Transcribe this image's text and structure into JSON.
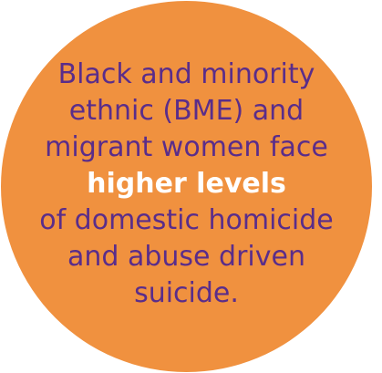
{
  "callout": {
    "lines": [
      "Black and minority",
      "ethnic (BME) and",
      "migrant women face",
      "higher levels",
      "of domestic homicide",
      "and abuse driven",
      "suicide."
    ]
  },
  "colors": {
    "circle": "#F0913F",
    "text": "#5A2D8A",
    "highlight": "#FFFFFF"
  }
}
